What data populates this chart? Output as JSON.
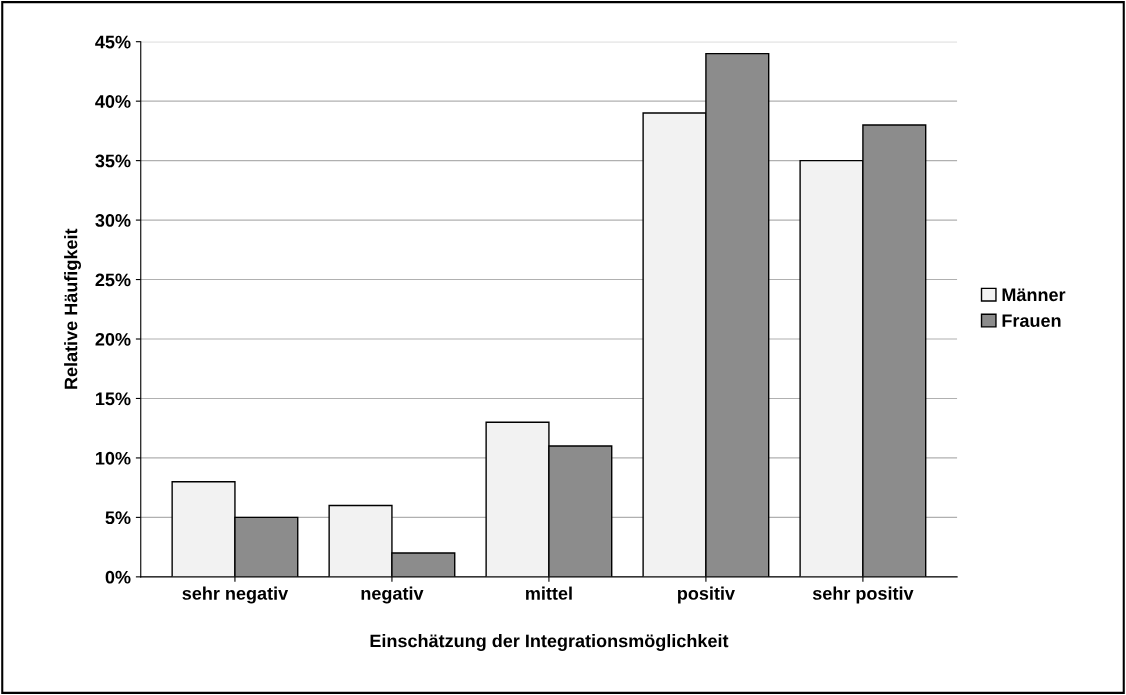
{
  "chart_data": {
    "type": "bar",
    "xlabel": "Einschätzung der Integrationsmöglichkeit",
    "ylabel": "Relative Häufigkeit",
    "categories": [
      "sehr negativ",
      "negativ",
      "mittel",
      "positiv",
      "sehr positiv"
    ],
    "series": [
      {
        "name": "Männer",
        "color": "#f2f2f2",
        "values": [
          8,
          6,
          13,
          39,
          35
        ]
      },
      {
        "name": "Frauen",
        "color": "#8c8c8c",
        "values": [
          5,
          2,
          11,
          44,
          38
        ]
      }
    ],
    "ylim": [
      0,
      45
    ],
    "yticks": [
      {
        "value": 0,
        "label": "0%"
      },
      {
        "value": 5,
        "label": "5%"
      },
      {
        "value": 10,
        "label": "10%"
      },
      {
        "value": 15,
        "label": "15%"
      },
      {
        "value": 20,
        "label": "20%"
      },
      {
        "value": 25,
        "label": "25%"
      },
      {
        "value": 30,
        "label": "30%"
      },
      {
        "value": 35,
        "label": "35%"
      },
      {
        "value": 40,
        "label": "40%"
      },
      {
        "value": 45,
        "label": "45%"
      }
    ],
    "grid": "y",
    "legend": "right"
  }
}
